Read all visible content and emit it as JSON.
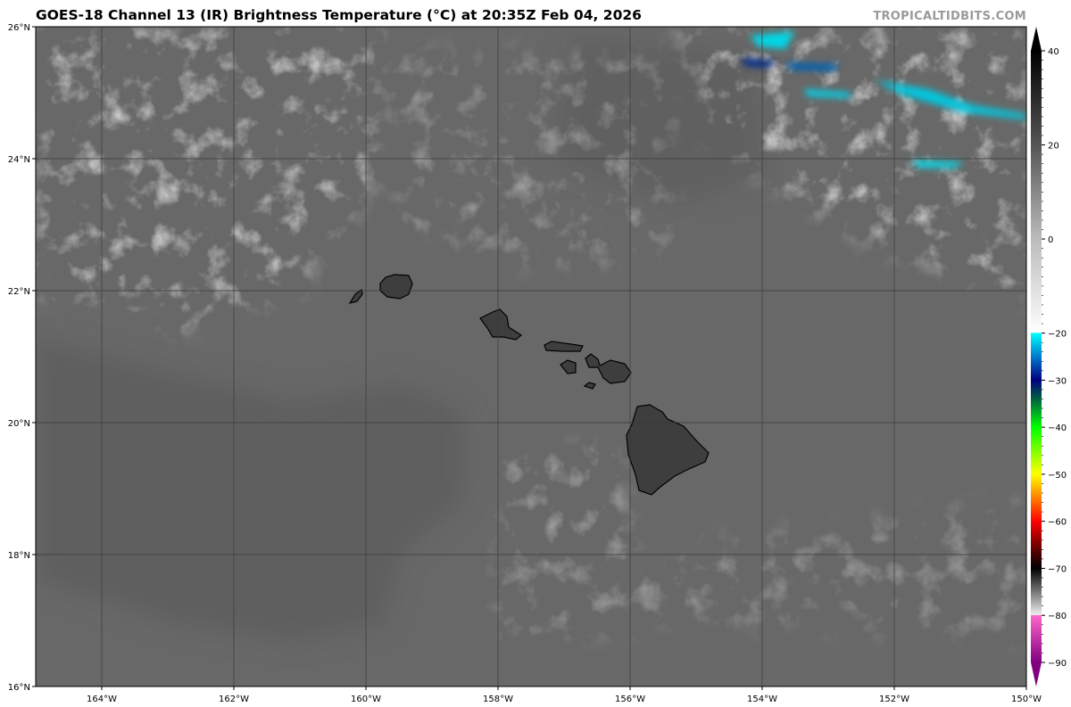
{
  "title": "GOES-18 Channel 13 (IR) Brightness Temperature (°C) at 20:35Z Feb 04, 2026",
  "credit": "TROPICALTIDBITS.COM",
  "map": {
    "lon_range": [
      -165,
      -150
    ],
    "lat_range": [
      16,
      26
    ],
    "lon_ticks": [
      {
        "value": -164,
        "label": "164°W"
      },
      {
        "value": -162,
        "label": "162°W"
      },
      {
        "value": -160,
        "label": "160°W"
      },
      {
        "value": -158,
        "label": "158°W"
      },
      {
        "value": -156,
        "label": "156°W"
      },
      {
        "value": -154,
        "label": "154°W"
      },
      {
        "value": -152,
        "label": "152°W"
      },
      {
        "value": -150,
        "label": "150°W"
      }
    ],
    "lat_ticks": [
      {
        "value": 26,
        "label": "26°N"
      },
      {
        "value": 24,
        "label": "24°N"
      },
      {
        "value": 22,
        "label": "22°N"
      },
      {
        "value": 20,
        "label": "20°N"
      },
      {
        "value": 18,
        "label": "18°N"
      },
      {
        "value": 16,
        "label": "16°N"
      }
    ],
    "grid": true,
    "colors": {
      "ocean": "#686868",
      "land": "#3c3c3c",
      "coast": "#000000",
      "grid": "#3a3a3a"
    }
  },
  "colorbar": {
    "range": [
      -90,
      40
    ],
    "ticks": [
      {
        "value": 40,
        "label": "40"
      },
      {
        "value": 20,
        "label": "20"
      },
      {
        "value": 0,
        "label": "0"
      },
      {
        "value": -20,
        "label": "−20"
      },
      {
        "value": -30,
        "label": "−30"
      },
      {
        "value": -40,
        "label": "−40"
      },
      {
        "value": -50,
        "label": "−50"
      },
      {
        "value": -60,
        "label": "−60"
      },
      {
        "value": -70,
        "label": "−70"
      },
      {
        "value": -80,
        "label": "−80"
      },
      {
        "value": -90,
        "label": "−90"
      }
    ],
    "stops": [
      {
        "value": 40,
        "color": "#000000"
      },
      {
        "value": 20,
        "color": "#555555"
      },
      {
        "value": 0,
        "color": "#bbbbbb"
      },
      {
        "value": -19.9,
        "color": "#ffffff"
      },
      {
        "value": -20,
        "color": "#00ffff"
      },
      {
        "value": -26,
        "color": "#0060c0"
      },
      {
        "value": -30,
        "color": "#000080"
      },
      {
        "value": -34,
        "color": "#006040"
      },
      {
        "value": -40,
        "color": "#00ff00"
      },
      {
        "value": -50,
        "color": "#ffff00"
      },
      {
        "value": -55,
        "color": "#ff8000"
      },
      {
        "value": -60,
        "color": "#ff0000"
      },
      {
        "value": -66,
        "color": "#600000"
      },
      {
        "value": -70,
        "color": "#000000"
      },
      {
        "value": -75,
        "color": "#777777"
      },
      {
        "value": -79.9,
        "color": "#eeeeee"
      },
      {
        "value": -80,
        "color": "#ff66cc"
      },
      {
        "value": -90,
        "color": "#800080"
      }
    ]
  }
}
